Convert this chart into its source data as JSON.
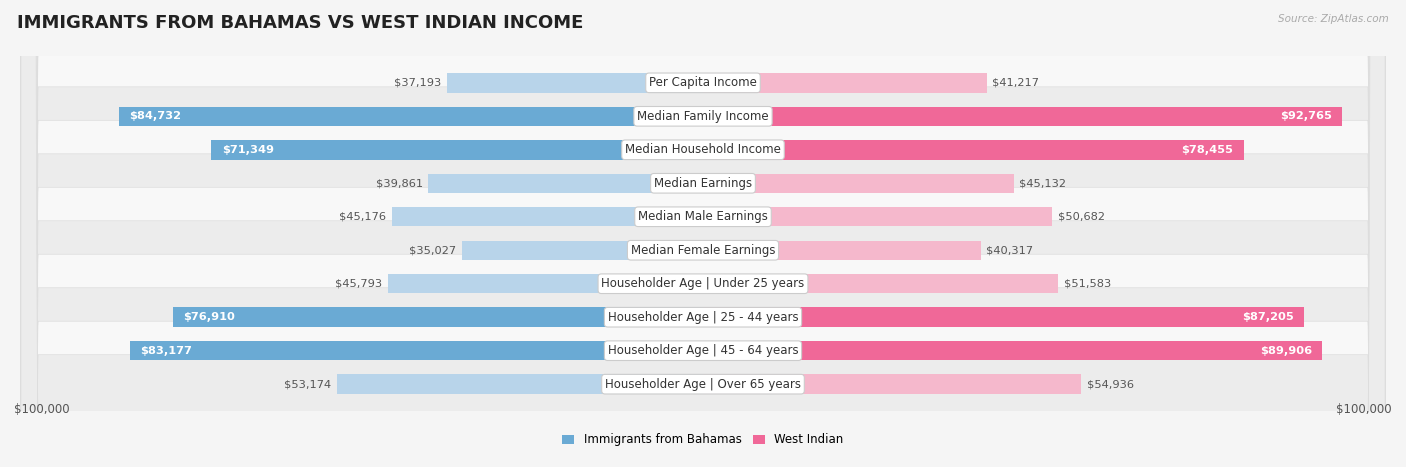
{
  "title": "IMMIGRANTS FROM BAHAMAS VS WEST INDIAN INCOME",
  "source": "Source: ZipAtlas.com",
  "categories": [
    "Per Capita Income",
    "Median Family Income",
    "Median Household Income",
    "Median Earnings",
    "Median Male Earnings",
    "Median Female Earnings",
    "Householder Age | Under 25 years",
    "Householder Age | 25 - 44 years",
    "Householder Age | 45 - 64 years",
    "Householder Age | Over 65 years"
  ],
  "bahamas_values": [
    37193,
    84732,
    71349,
    39861,
    45176,
    35027,
    45793,
    76910,
    83177,
    53174
  ],
  "west_indian_values": [
    41217,
    92765,
    78455,
    45132,
    50682,
    40317,
    51583,
    87205,
    89906,
    54936
  ],
  "bahamas_color_light": "#b8d4ea",
  "bahamas_color_dark": "#6aaad4",
  "west_indian_color_light": "#f5b8cc",
  "west_indian_color_dark": "#f06898",
  "inside_threshold": 60000,
  "max_value": 100000,
  "xlabel_left": "$100,000",
  "xlabel_right": "$100,000",
  "legend_bahamas": "Immigrants from Bahamas",
  "legend_west_indian": "West Indian",
  "background_color": "#f5f5f5",
  "row_bg_light": "#f8f8f8",
  "row_bg_dark": "#ececec",
  "row_border_color": "#dddddd",
  "title_fontsize": 13,
  "label_fontsize": 8.5,
  "value_fontsize": 8.2
}
